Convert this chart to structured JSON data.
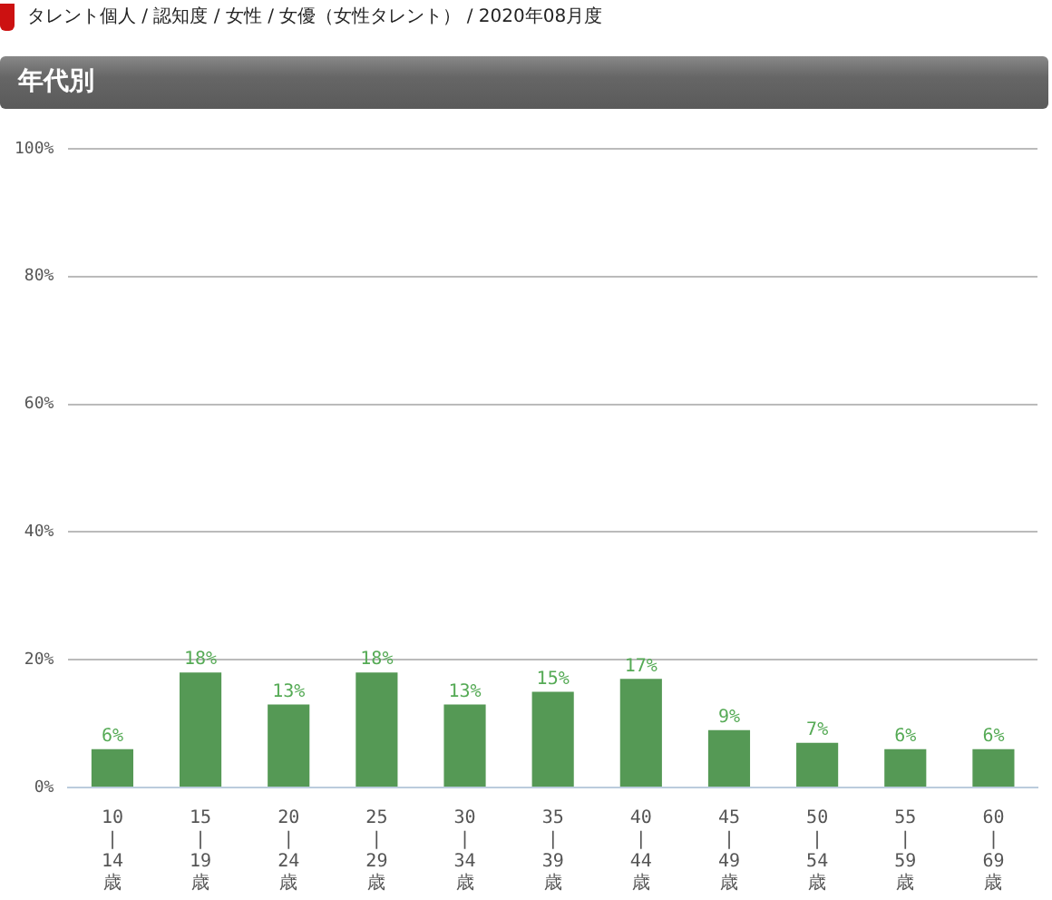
{
  "chart_data": {
    "type": "bar",
    "title": "年代別",
    "subtitle": "タレント個人 / 認知度 / 女性 / 女優（女性タレント） / 2020年08月度",
    "categories": [
      "10\n|\n14\n歳",
      "15\n|\n19\n歳",
      "20\n|\n24\n歳",
      "25\n|\n29\n歳",
      "30\n|\n34\n歳",
      "35\n|\n39\n歳",
      "40\n|\n44\n歳",
      "45\n|\n49\n歳",
      "50\n|\n54\n歳",
      "55\n|\n59\n歳",
      "60\n|\n69\n歳"
    ],
    "values": [
      6,
      18,
      13,
      18,
      13,
      15,
      17,
      9,
      7,
      6,
      6
    ],
    "value_labels": [
      "6%",
      "18%",
      "13%",
      "18%",
      "13%",
      "15%",
      "17%",
      "9%",
      "7%",
      "6%",
      "6%"
    ],
    "color": "#559955",
    "ylim": [
      0,
      100
    ],
    "yticks": [
      {
        "value": 0,
        "label": "0%"
      },
      {
        "value": 20,
        "label": "20%"
      },
      {
        "value": 40,
        "label": "40%"
      },
      {
        "value": 60,
        "label": "60%"
      },
      {
        "value": 80,
        "label": "80%"
      },
      {
        "value": 100,
        "label": "100%"
      }
    ],
    "grid": "y",
    "legend": false
  }
}
